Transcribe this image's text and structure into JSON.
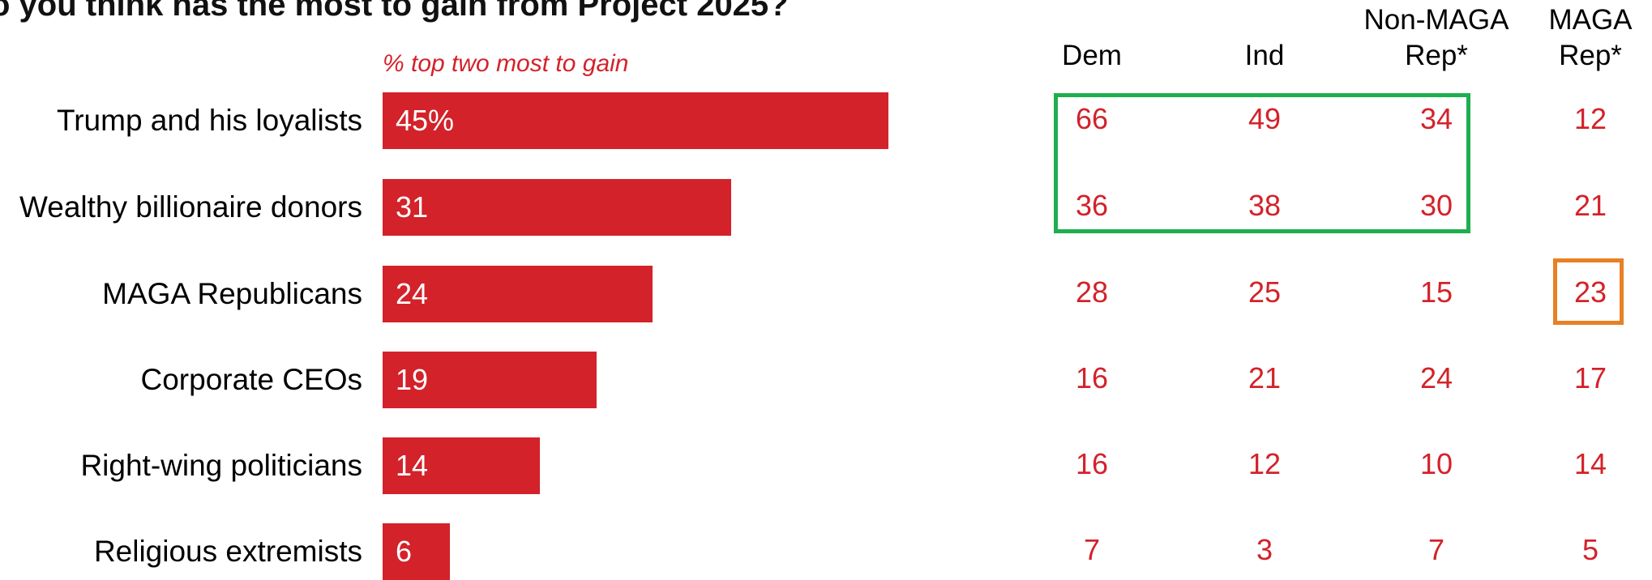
{
  "chart_data": {
    "type": "bar",
    "title": "o you think has the most to gain from Project 2025?",
    "subtitle": "% top two most to gain",
    "categories": [
      "Trump and his loyalists",
      "Wealthy billionaire donors",
      "MAGA Republicans",
      "Corporate CEOs",
      "Right-wing politicians",
      "Religious extremists"
    ],
    "values": [
      45,
      31,
      24,
      19,
      14,
      6
    ],
    "value_labels": [
      "45%",
      "31",
      "24",
      "19",
      "14",
      "6"
    ],
    "xlim": [
      0,
      100
    ],
    "table": {
      "columns": [
        "Dem",
        "Ind",
        "Non-MAGA Rep*",
        "MAGA Rep*"
      ],
      "rows": [
        [
          66,
          49,
          34,
          12
        ],
        [
          36,
          38,
          30,
          21
        ],
        [
          28,
          25,
          15,
          23
        ],
        [
          16,
          21,
          24,
          17
        ],
        [
          16,
          12,
          10,
          14
        ],
        [
          7,
          3,
          7,
          5
        ]
      ]
    },
    "highlights": [
      {
        "color": "#1fae4f",
        "rows": [
          0,
          1
        ],
        "columns": [
          0,
          1,
          2
        ]
      },
      {
        "color": "#e88024",
        "rows": [
          2
        ],
        "columns": [
          3
        ]
      }
    ],
    "colors": {
      "bar": "#d3222a",
      "value_text": "#d3222a",
      "bar_text": "#ffffff"
    }
  }
}
